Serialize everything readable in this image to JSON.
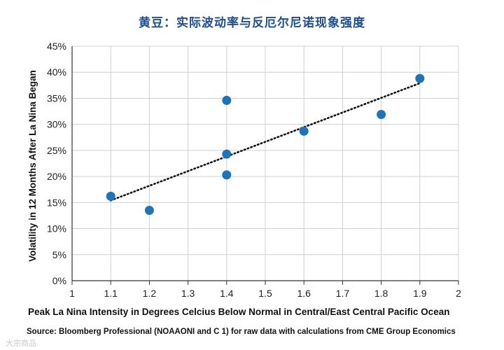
{
  "chart_data": {
    "type": "scatter",
    "title": "黄豆：实际波动率与反厄尔尼诺现象强度",
    "xlabel": "Peak La Nina Intensity in Degrees Celcius Below Normal in Central/East Central Pacific Ocean",
    "ylabel": "Volatility in 12 Months After La Nina Began",
    "source": "Source: Bloomberg Professional (NOAAONI and C 1) for raw data with calculations from CME Group Economics",
    "xlim": [
      1,
      2
    ],
    "ylim": [
      0,
      45
    ],
    "x_ticks": [
      1,
      1.1,
      1.2,
      1.3,
      1.4,
      1.5,
      1.6,
      1.7,
      1.8,
      1.9,
      2
    ],
    "x_tick_labels": [
      "1",
      "1.1",
      "1.2",
      "1.3",
      "1.4",
      "1.5",
      "1.6",
      "1.7",
      "1.8",
      "1.9",
      "2"
    ],
    "y_ticks": [
      0,
      5,
      10,
      15,
      20,
      25,
      30,
      35,
      40,
      45
    ],
    "y_tick_labels": [
      "0%",
      "5%",
      "10%",
      "15%",
      "20%",
      "25%",
      "30%",
      "35%",
      "40%",
      "45%"
    ],
    "grid": true,
    "points": [
      {
        "x": 1.1,
        "y": 16.2
      },
      {
        "x": 1.2,
        "y": 13.5
      },
      {
        "x": 1.4,
        "y": 34.6
      },
      {
        "x": 1.4,
        "y": 24.3
      },
      {
        "x": 1.4,
        "y": 20.3
      },
      {
        "x": 1.6,
        "y": 28.7
      },
      {
        "x": 1.8,
        "y": 31.9
      },
      {
        "x": 1.9,
        "y": 38.8
      }
    ],
    "trendline": {
      "x": [
        1.1,
        1.9
      ],
      "y": [
        15.4,
        37.9
      ]
    },
    "colors": {
      "point": "#1f73b7",
      "trendline": "#111111",
      "grid": "#d0d0d0",
      "title": "#1f4e8c"
    }
  },
  "watermark": "大宗商品"
}
